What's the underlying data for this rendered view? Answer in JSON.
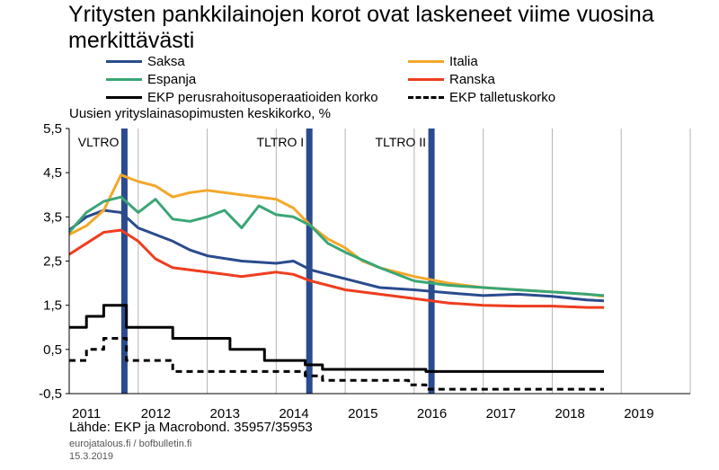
{
  "title": "Yritysten pankkilainojen korot ovat laskeneet viime vuosina merkittävästi",
  "subtitle": "Uusien yrityslainasopimusten keskikorko, %",
  "source": "Lähde: EKP ja Macrobond. 35957/35953",
  "footer_site": "eurojatalous.fi / bofbulletin.fi",
  "footer_date": "15.3.2019",
  "chart_data": {
    "type": "line",
    "xlim": [
      2011,
      2020
    ],
    "ylim": [
      -0.5,
      5.5
    ],
    "x_ticks": [
      "2011",
      "2012",
      "2013",
      "2014",
      "2015",
      "2016",
      "2017",
      "2018",
      "2019"
    ],
    "y_ticks": [
      "5,5",
      "4,5",
      "3,5",
      "2,5",
      "1,5",
      "0,5",
      "-0,5"
    ],
    "grid": "vertical",
    "legend_position": "top",
    "annotations": [
      {
        "label": "VLTRO",
        "x": 2011.8
      },
      {
        "label": "TLTRO I",
        "x": 2014.48
      },
      {
        "label": "TLTRO II",
        "x": 2016.25
      }
    ],
    "series": [
      {
        "name": "Saksa",
        "color": "#2a4b8d",
        "style": "solid",
        "points": [
          [
            2011.0,
            3.2
          ],
          [
            2011.25,
            3.5
          ],
          [
            2011.5,
            3.65
          ],
          [
            2011.75,
            3.6
          ],
          [
            2012.0,
            3.25
          ],
          [
            2012.25,
            3.1
          ],
          [
            2012.5,
            2.95
          ],
          [
            2012.75,
            2.75
          ],
          [
            2013.0,
            2.62
          ],
          [
            2013.5,
            2.5
          ],
          [
            2014.0,
            2.45
          ],
          [
            2014.25,
            2.5
          ],
          [
            2014.5,
            2.3
          ],
          [
            2014.75,
            2.2
          ],
          [
            2015.0,
            2.1
          ],
          [
            2015.5,
            1.9
          ],
          [
            2016.0,
            1.85
          ],
          [
            2016.5,
            1.78
          ],
          [
            2017.0,
            1.72
          ],
          [
            2017.5,
            1.75
          ],
          [
            2018.0,
            1.7
          ],
          [
            2018.5,
            1.62
          ],
          [
            2018.75,
            1.6
          ]
        ]
      },
      {
        "name": "Italia",
        "color": "#f4a72a",
        "style": "solid",
        "points": [
          [
            2011.0,
            3.1
          ],
          [
            2011.25,
            3.3
          ],
          [
            2011.5,
            3.65
          ],
          [
            2011.75,
            4.45
          ],
          [
            2012.0,
            4.3
          ],
          [
            2012.25,
            4.2
          ],
          [
            2012.5,
            3.95
          ],
          [
            2012.75,
            4.05
          ],
          [
            2013.0,
            4.1
          ],
          [
            2013.5,
            4.0
          ],
          [
            2013.75,
            3.95
          ],
          [
            2014.0,
            3.9
          ],
          [
            2014.25,
            3.7
          ],
          [
            2014.5,
            3.3
          ],
          [
            2014.75,
            3.0
          ],
          [
            2015.0,
            2.8
          ],
          [
            2015.25,
            2.5
          ],
          [
            2015.5,
            2.35
          ],
          [
            2016.0,
            2.15
          ],
          [
            2016.5,
            2.0
          ],
          [
            2017.0,
            1.9
          ],
          [
            2017.5,
            1.85
          ],
          [
            2018.0,
            1.8
          ],
          [
            2018.5,
            1.75
          ],
          [
            2018.75,
            1.7
          ]
        ]
      },
      {
        "name": "Espanja",
        "color": "#3aa676",
        "style": "solid",
        "points": [
          [
            2011.0,
            3.15
          ],
          [
            2011.25,
            3.6
          ],
          [
            2011.5,
            3.85
          ],
          [
            2011.75,
            3.95
          ],
          [
            2012.0,
            3.6
          ],
          [
            2012.25,
            3.9
          ],
          [
            2012.5,
            3.45
          ],
          [
            2012.75,
            3.4
          ],
          [
            2013.0,
            3.5
          ],
          [
            2013.25,
            3.65
          ],
          [
            2013.5,
            3.25
          ],
          [
            2013.75,
            3.75
          ],
          [
            2014.0,
            3.55
          ],
          [
            2014.25,
            3.5
          ],
          [
            2014.5,
            3.3
          ],
          [
            2014.75,
            2.9
          ],
          [
            2015.0,
            2.7
          ],
          [
            2015.5,
            2.35
          ],
          [
            2016.0,
            2.05
          ],
          [
            2016.5,
            1.95
          ],
          [
            2017.0,
            1.9
          ],
          [
            2017.5,
            1.85
          ],
          [
            2018.0,
            1.8
          ],
          [
            2018.5,
            1.75
          ],
          [
            2018.75,
            1.72
          ]
        ]
      },
      {
        "name": "Ranska",
        "color": "#ee3d1f",
        "style": "solid",
        "points": [
          [
            2011.0,
            2.65
          ],
          [
            2011.25,
            2.9
          ],
          [
            2011.5,
            3.15
          ],
          [
            2011.75,
            3.2
          ],
          [
            2012.0,
            2.95
          ],
          [
            2012.25,
            2.55
          ],
          [
            2012.5,
            2.35
          ],
          [
            2013.0,
            2.25
          ],
          [
            2013.5,
            2.15
          ],
          [
            2014.0,
            2.25
          ],
          [
            2014.25,
            2.2
          ],
          [
            2014.5,
            2.05
          ],
          [
            2014.75,
            1.95
          ],
          [
            2015.0,
            1.85
          ],
          [
            2015.5,
            1.75
          ],
          [
            2016.0,
            1.65
          ],
          [
            2016.5,
            1.55
          ],
          [
            2017.0,
            1.5
          ],
          [
            2017.5,
            1.48
          ],
          [
            2018.0,
            1.48
          ],
          [
            2018.5,
            1.45
          ],
          [
            2018.75,
            1.45
          ]
        ]
      },
      {
        "name": "EKP perusrahoitusoperaatioiden korko",
        "color": "#000000",
        "style": "solid",
        "points": [
          [
            2011.0,
            1.0
          ],
          [
            2011.25,
            1.0
          ],
          [
            2011.25,
            1.25
          ],
          [
            2011.5,
            1.25
          ],
          [
            2011.5,
            1.5
          ],
          [
            2011.83,
            1.5
          ],
          [
            2011.83,
            1.0
          ],
          [
            2012.5,
            1.0
          ],
          [
            2012.5,
            0.75
          ],
          [
            2013.33,
            0.75
          ],
          [
            2013.33,
            0.5
          ],
          [
            2013.83,
            0.5
          ],
          [
            2013.83,
            0.25
          ],
          [
            2014.42,
            0.25
          ],
          [
            2014.42,
            0.15
          ],
          [
            2014.67,
            0.15
          ],
          [
            2014.67,
            0.05
          ],
          [
            2016.17,
            0.05
          ],
          [
            2016.17,
            0.0
          ],
          [
            2018.75,
            0.0
          ]
        ]
      },
      {
        "name": "EKP talletuskorko",
        "color": "#000000",
        "style": "dashed",
        "points": [
          [
            2011.0,
            0.25
          ],
          [
            2011.25,
            0.25
          ],
          [
            2011.25,
            0.5
          ],
          [
            2011.5,
            0.5
          ],
          [
            2011.5,
            0.75
          ],
          [
            2011.83,
            0.75
          ],
          [
            2011.83,
            0.25
          ],
          [
            2012.5,
            0.25
          ],
          [
            2012.5,
            0.0
          ],
          [
            2014.42,
            0.0
          ],
          [
            2014.42,
            -0.1
          ],
          [
            2014.67,
            -0.1
          ],
          [
            2014.67,
            -0.2
          ],
          [
            2015.92,
            -0.2
          ],
          [
            2015.92,
            -0.3
          ],
          [
            2016.17,
            -0.3
          ],
          [
            2016.17,
            -0.4
          ],
          [
            2018.75,
            -0.4
          ]
        ]
      }
    ]
  }
}
